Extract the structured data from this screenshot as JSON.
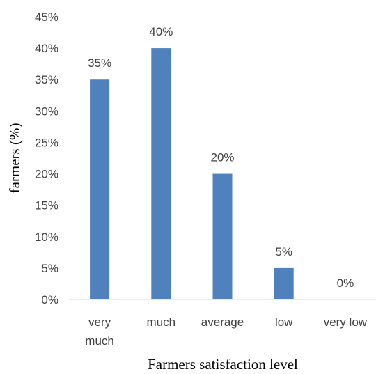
{
  "chart_data": {
    "type": "bar",
    "title": "",
    "xlabel": "Farmers satisfaction level",
    "ylabel": "farmers (%)",
    "categories": [
      [
        "very",
        "much"
      ],
      [
        "much"
      ],
      [
        "average"
      ],
      [
        "low"
      ],
      [
        "very low"
      ]
    ],
    "values": [
      35,
      40,
      20,
      5,
      0
    ],
    "data_labels": [
      "35%",
      "40%",
      "20%",
      "5%",
      "0%"
    ],
    "ylim": [
      0,
      45
    ],
    "yticks": [
      "0%",
      "5%",
      "10%",
      "15%",
      "20%",
      "25%",
      "30%",
      "35%",
      "40%",
      "45%"
    ],
    "grid": false,
    "legend": "none",
    "bar_color": "#4f81bd",
    "axis_color": "#d9d9d9"
  }
}
